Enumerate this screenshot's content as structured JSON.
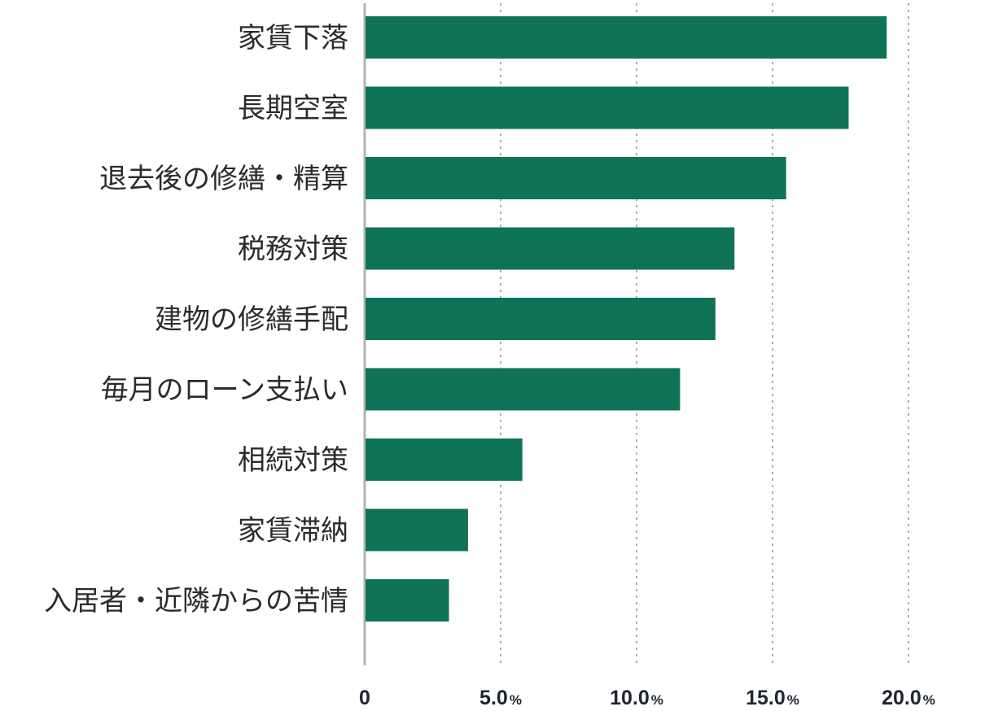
{
  "chart_data": {
    "type": "bar",
    "orientation": "horizontal",
    "categories": [
      "家賃下落",
      "長期空室",
      "退去後の修繕・精算",
      "税務対策",
      "建物の修繕手配",
      "毎月のローン支払い",
      "相続対策",
      "家賃滞納",
      "入居者・近隣からの苦情"
    ],
    "values": [
      19.2,
      17.8,
      15.5,
      13.6,
      12.9,
      11.6,
      5.8,
      3.8,
      3.1
    ],
    "xlim": [
      0,
      20
    ],
    "x_ticks": [
      {
        "value": 0,
        "label": "0",
        "unit": ""
      },
      {
        "value": 5,
        "label": "5.0",
        "unit": "%"
      },
      {
        "value": 10,
        "label": "10.0",
        "unit": "%"
      },
      {
        "value": 15,
        "label": "15.0",
        "unit": "%"
      },
      {
        "value": 20,
        "label": "20.0",
        "unit": "%"
      }
    ],
    "title": "",
    "xlabel": "",
    "ylabel": "",
    "grid": "vertical dotted",
    "legend": "none",
    "colors": {
      "bar": "#0f7457",
      "axis": "#b3b3b3",
      "grid": "#9c9c9c"
    }
  }
}
